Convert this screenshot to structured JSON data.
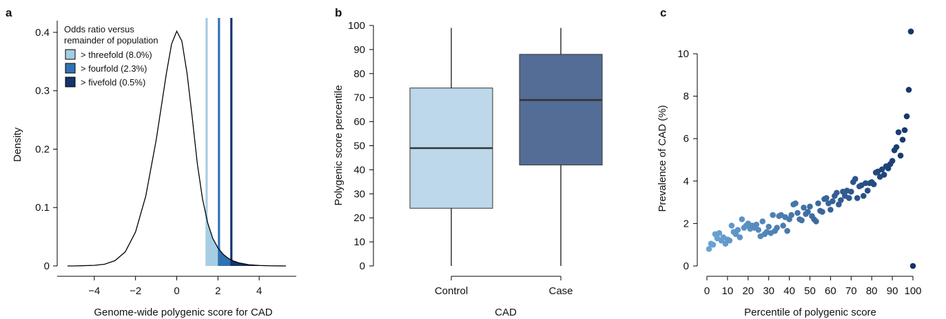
{
  "colors": {
    "threefold": "#a6cde3",
    "fourfold": "#2f73b5",
    "fivefold": "#14356b",
    "box_control": "#bcd8ea",
    "box_case": "#536d96",
    "dot_light": "#6aa4d6",
    "dot_dark": "#14356b"
  },
  "chart_data": [
    {
      "panel": "a",
      "type": "area",
      "xlabel": "Genome-wide polygenic score for CAD",
      "ylabel": "Density",
      "xlim": [
        -5.8,
        5.8
      ],
      "ylim": [
        0,
        0.42
      ],
      "x_ticks": [
        -4,
        -2,
        0,
        2,
        4
      ],
      "x_tick_labels": [
        "−4",
        "−2",
        "0",
        "2",
        "4"
      ],
      "y_ticks": [
        0,
        0.1,
        0.2,
        0.3,
        0.4
      ],
      "y_tick_labels": [
        "0",
        "0.1",
        "0.2",
        "0.3",
        "0.4"
      ],
      "density_curve": {
        "x": [
          -5.3,
          -5.0,
          -4.5,
          -4.0,
          -3.5,
          -3.0,
          -2.5,
          -2.0,
          -1.5,
          -1.0,
          -0.5,
          -0.25,
          0.0,
          0.25,
          0.5,
          0.75,
          1.0,
          1.25,
          1.5,
          1.75,
          2.0,
          2.25,
          2.5,
          2.75,
          3.0,
          3.5,
          4.0,
          4.5,
          5.0,
          5.3
        ],
        "y": [
          0.0,
          0.0,
          0.0005,
          0.001,
          0.003,
          0.009,
          0.024,
          0.058,
          0.12,
          0.215,
          0.33,
          0.38,
          0.402,
          0.385,
          0.33,
          0.255,
          0.175,
          0.115,
          0.074,
          0.047,
          0.031,
          0.02,
          0.013,
          0.0085,
          0.0055,
          0.002,
          0.0008,
          0.0003,
          0.0001,
          0.0
        ]
      },
      "thresholds": [
        {
          "label": "> threefold (8.0%)",
          "x": 1.45,
          "color": "#a6cde3"
        },
        {
          "label": "> fourfold (2.3%)",
          "x": 2.05,
          "color": "#2f73b5"
        },
        {
          "label": "> fivefold (0.5%)",
          "x": 2.65,
          "color": "#14356b"
        }
      ],
      "legend": {
        "title_line1": "Odds ratio versus",
        "title_line2": "remainder of population",
        "placement": "top-left"
      }
    },
    {
      "panel": "b",
      "type": "box",
      "xlabel": "CAD",
      "ylabel": "Polygenic score percentile",
      "ylim": [
        0,
        100
      ],
      "y_ticks": [
        0,
        10,
        20,
        30,
        40,
        50,
        60,
        70,
        80,
        90,
        100
      ],
      "categories": [
        "Control",
        "Case"
      ],
      "boxes": [
        {
          "category": "Control",
          "min": 0,
          "q1": 24,
          "median": 49,
          "q3": 74,
          "max": 99,
          "color": "#bcd8ea"
        },
        {
          "category": "Case",
          "min": 0,
          "q1": 42,
          "median": 69,
          "q3": 88,
          "max": 99,
          "color": "#536d96"
        }
      ]
    },
    {
      "panel": "c",
      "type": "scatter",
      "xlabel": "Percentile of polygenic score",
      "ylabel": "Prevalence of CAD (%)",
      "xlim": [
        0,
        100
      ],
      "ylim": [
        0,
        11.5
      ],
      "x_ticks": [
        0,
        10,
        20,
        30,
        40,
        50,
        60,
        70,
        80,
        90,
        100
      ],
      "y_ticks": [
        0,
        2,
        4,
        6,
        8,
        10
      ],
      "x": [
        1,
        2,
        3,
        4,
        5,
        6,
        7,
        8,
        9,
        10,
        11,
        12,
        13,
        14,
        15,
        16,
        17,
        18,
        19,
        20,
        21,
        22,
        23,
        24,
        25,
        26,
        27,
        28,
        29,
        30,
        31,
        32,
        33,
        34,
        35,
        36,
        37,
        38,
        39,
        40,
        41,
        42,
        43,
        44,
        45,
        46,
        47,
        48,
        49,
        50,
        51,
        52,
        53,
        54,
        55,
        56,
        57,
        58,
        59,
        60,
        61,
        62,
        63,
        64,
        65,
        66,
        67,
        68,
        69,
        70,
        71,
        72,
        73,
        74,
        75,
        76,
        77,
        78,
        79,
        80,
        81,
        82,
        83,
        84,
        85,
        86,
        87,
        88,
        89,
        90,
        91,
        92,
        93,
        94,
        95,
        96,
        97,
        98,
        99,
        100
      ],
      "y": [
        0.8,
        1.05,
        1.0,
        1.5,
        1.3,
        1.55,
        1.2,
        1.35,
        1.05,
        1.25,
        1.2,
        1.9,
        1.6,
        1.5,
        1.7,
        1.35,
        2.2,
        1.8,
        1.9,
        2.0,
        1.75,
        1.9,
        1.8,
        1.95,
        1.7,
        1.4,
        2.1,
        1.5,
        1.6,
        1.85,
        1.55,
        2.4,
        1.65,
        1.8,
        2.35,
        2.4,
        1.9,
        2.3,
        1.65,
        2.2,
        2.4,
        2.9,
        2.95,
        2.5,
        2.2,
        2.15,
        2.75,
        2.45,
        2.55,
        2.8,
        2.35,
        2.2,
        2.1,
        2.95,
        2.6,
        2.55,
        3.15,
        3.2,
        2.95,
        2.65,
        3.05,
        3.3,
        3.45,
        2.9,
        3.1,
        3.5,
        3.3,
        3.55,
        3.2,
        3.5,
        3.95,
        4.1,
        3.2,
        3.75,
        3.8,
        3.3,
        3.9,
        3.55,
        3.9,
        3.95,
        3.85,
        4.4,
        4.45,
        4.2,
        4.55,
        4.3,
        4.7,
        4.6,
        4.8,
        4.95,
        5.45,
        5.6,
        6.3,
        5.2,
        5.95,
        6.4,
        7.05,
        8.3,
        11.05,
        0
      ]
    }
  ]
}
